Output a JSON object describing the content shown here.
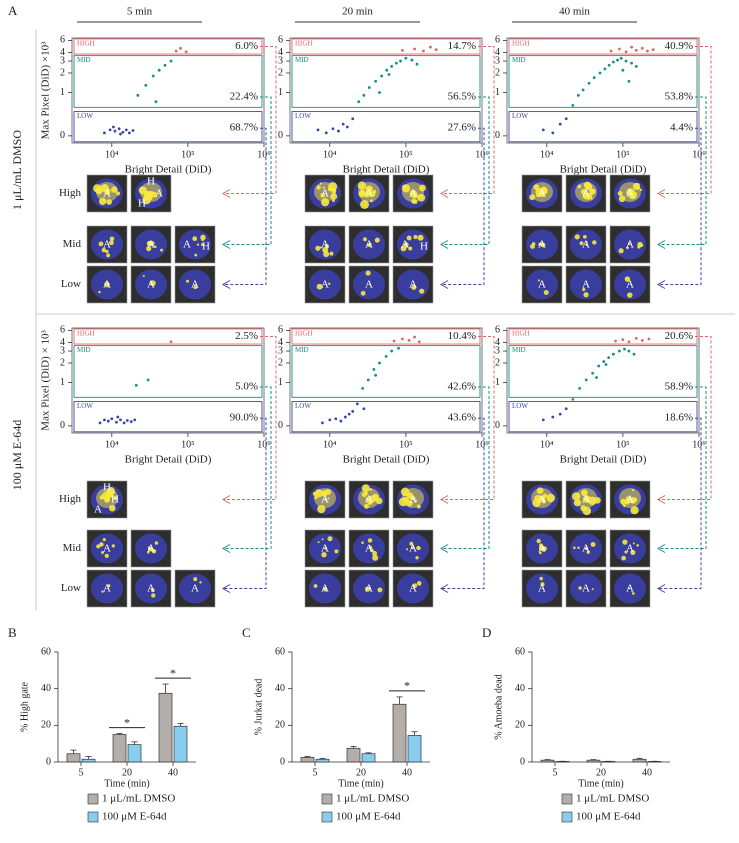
{
  "figure_label": "A",
  "time_headers": [
    "5 min",
    "20 min",
    "40 min"
  ],
  "conditions": [
    "1 μL/mL DMSO",
    "100 μM E-64d"
  ],
  "row_labels": [
    "High",
    "Mid",
    "Low"
  ],
  "chart_data": [
    {
      "type": "scatter",
      "xscale": "log",
      "yscale": "asinh",
      "xlim": [
        3000,
        1000000
      ],
      "ylim": [
        -0.12,
        6.5
      ],
      "xticks": [
        {
          "value": 10000,
          "label": "10⁴"
        },
        {
          "value": 100000,
          "label": "10⁵"
        },
        {
          "value": 1000000,
          "label": "10⁶"
        }
      ],
      "yticks": [
        0,
        1,
        2,
        3,
        4,
        6
      ],
      "xlabel": "Bright Detail (DiD)",
      "ylabel": "Max Pixel (DiD) ×10³",
      "x": [
        8000,
        9500,
        11000,
        12500,
        14000,
        15500,
        17000,
        19000,
        10500,
        13000,
        22000,
        28000,
        35000,
        42000,
        50000,
        38000,
        60000,
        70000,
        80000,
        95000
      ],
      "values": [
        0.05,
        0.1,
        0.08,
        0.12,
        0.06,
        0.1,
        0.05,
        0.09,
        0.15,
        0.03,
        0.9,
        1.3,
        1.8,
        2.2,
        2.6,
        0.7,
        3.0,
        4.2,
        4.6,
        4.1
      ],
      "gates": [
        {
          "name": "HIGH",
          "range": [
            3.8,
            6.3
          ],
          "color": "#e06464",
          "percent": "6.0%"
        },
        {
          "name": "MID",
          "range": [
            0.55,
            3.6
          ],
          "color": "#138f8b",
          "percent": "22.4%"
        },
        {
          "name": "LOW",
          "range": [
            -0.1,
            0.45
          ],
          "color": "#3a45a8",
          "percent": "68.7%"
        }
      ]
    },
    {
      "type": "scatter",
      "xscale": "log",
      "yscale": "asinh",
      "xlim": [
        3000,
        1000000
      ],
      "ylim": [
        -0.12,
        6.5
      ],
      "xticks": [
        {
          "value": 10000,
          "label": "10⁴"
        },
        {
          "value": 100000,
          "label": "10⁵"
        },
        {
          "value": 1000000,
          "label": "10⁶"
        }
      ],
      "yticks": [
        0,
        1,
        2,
        3,
        4,
        6
      ],
      "xlabel": "Bright Detail (DiD)",
      "x": [
        7000,
        9000,
        11000,
        13000,
        15000,
        17000,
        20000,
        24000,
        28000,
        33000,
        40000,
        48000,
        56000,
        65000,
        75000,
        85000,
        100000,
        120000,
        140000,
        90000,
        130000,
        170000,
        210000,
        250000,
        60000,
        45000
      ],
      "values": [
        0.1,
        0.05,
        0.12,
        0.08,
        0.2,
        0.15,
        0.3,
        0.7,
        0.9,
        1.2,
        1.5,
        1.8,
        2.2,
        2.5,
        2.8,
        3.0,
        3.3,
        3.1,
        2.7,
        4.3,
        4.5,
        4.2,
        4.8,
        4.4,
        1.9,
        1.0
      ],
      "gates": [
        {
          "name": "HIGH",
          "range": [
            3.8,
            6.3
          ],
          "color": "#e06464",
          "percent": "14.7%"
        },
        {
          "name": "MID",
          "range": [
            0.55,
            3.6
          ],
          "color": "#138f8b",
          "percent": "56.5%"
        },
        {
          "name": "LOW",
          "range": [
            -0.1,
            0.45
          ],
          "color": "#3a45a8",
          "percent": "27.6%"
        }
      ]
    },
    {
      "type": "scatter",
      "xscale": "log",
      "yscale": "asinh",
      "xlim": [
        3000,
        1000000
      ],
      "ylim": [
        -0.12,
        6.5
      ],
      "xticks": [
        {
          "value": 10000,
          "label": "10⁴"
        },
        {
          "value": 100000,
          "label": "10⁵"
        },
        {
          "value": 1000000,
          "label": "10⁶"
        }
      ],
      "yticks": [
        0,
        1,
        2,
        3,
        4,
        6
      ],
      "xlabel": "Bright Detail (DiD)",
      "x": [
        9000,
        12000,
        15000,
        18000,
        22000,
        26000,
        30000,
        36000,
        42000,
        50000,
        58000,
        66000,
        75000,
        85000,
        95000,
        110000,
        130000,
        150000,
        70000,
        90000,
        110000,
        130000,
        150000,
        180000,
        210000,
        250000,
        100000,
        120000
      ],
      "values": [
        0.1,
        0.05,
        0.2,
        0.3,
        0.6,
        0.9,
        1.1,
        1.4,
        1.7,
        2.0,
        2.3,
        2.6,
        2.9,
        3.1,
        3.3,
        3.0,
        2.8,
        2.5,
        4.2,
        4.5,
        4.1,
        4.8,
        4.3,
        4.6,
        4.2,
        4.4,
        2.2,
        1.5
      ],
      "gates": [
        {
          "name": "HIGH",
          "range": [
            3.8,
            6.3
          ],
          "color": "#e06464",
          "percent": "40.9%"
        },
        {
          "name": "MID",
          "range": [
            0.55,
            3.6
          ],
          "color": "#138f8b",
          "percent": "53.8%"
        },
        {
          "name": "LOW",
          "range": [
            -0.1,
            0.45
          ],
          "color": "#3a45a8",
          "percent": "4.4%"
        }
      ]
    },
    {
      "type": "scatter",
      "xscale": "log",
      "yscale": "asinh",
      "xlim": [
        3000,
        1000000
      ],
      "ylim": [
        -0.12,
        6.5
      ],
      "xticks": [
        {
          "value": 10000,
          "label": "10⁴"
        },
        {
          "value": 100000,
          "label": "10⁵"
        },
        {
          "value": 1000000,
          "label": "10⁶"
        }
      ],
      "yticks": [
        0,
        1,
        2,
        3,
        4,
        6
      ],
      "xlabel": "Bright Detail (DiD)",
      "ylabel": "Max Pixel (DiD) × 10³",
      "x": [
        7000,
        8000,
        9000,
        10000,
        11500,
        13000,
        14500,
        16000,
        18000,
        20000,
        12000,
        21000,
        30000,
        60000
      ],
      "values": [
        0.05,
        0.1,
        0.08,
        0.12,
        0.06,
        0.1,
        0.05,
        0.09,
        0.07,
        0.1,
        0.15,
        0.9,
        1.1,
        4.1
      ],
      "gates": [
        {
          "name": "HIGH",
          "range": [
            3.8,
            6.3
          ],
          "color": "#e06464",
          "percent": "2.5%"
        },
        {
          "name": "MID",
          "range": [
            0.55,
            3.6
          ],
          "color": "#138f8b",
          "percent": "5.0%"
        },
        {
          "name": "LOW",
          "range": [
            -0.1,
            0.45
          ],
          "color": "#3a45a8",
          "percent": "90.0%"
        }
      ]
    },
    {
      "type": "scatter",
      "xscale": "log",
      "yscale": "asinh",
      "xlim": [
        3000,
        1000000
      ],
      "ylim": [
        -0.12,
        6.5
      ],
      "xticks": [
        {
          "value": 10000,
          "label": "10⁴"
        },
        {
          "value": 100000,
          "label": "10⁵"
        },
        {
          "value": 1000000,
          "label": "10⁶"
        }
      ],
      "yticks": [
        0,
        1,
        2,
        3,
        4,
        6
      ],
      "xlabel": "Bright Detail (DiD)",
      "x": [
        8000,
        10000,
        12000,
        14000,
        16000,
        18000,
        20000,
        23000,
        27000,
        32000,
        38000,
        45000,
        55000,
        65000,
        80000,
        70000,
        90000,
        110000,
        130000,
        150000,
        40000,
        28000
      ],
      "values": [
        0.05,
        0.1,
        0.12,
        0.08,
        0.15,
        0.2,
        0.25,
        0.4,
        0.8,
        1.1,
        1.6,
        2.0,
        2.5,
        3.0,
        3.3,
        4.2,
        4.5,
        4.3,
        4.8,
        4.1,
        1.3,
        0.3
      ],
      "gates": [
        {
          "name": "HIGH",
          "range": [
            3.8,
            6.3
          ],
          "color": "#e06464",
          "percent": "10.4%"
        },
        {
          "name": "MID",
          "range": [
            0.55,
            3.6
          ],
          "color": "#138f8b",
          "percent": "42.6%"
        },
        {
          "name": "LOW",
          "range": [
            -0.1,
            0.45
          ],
          "color": "#3a45a8",
          "percent": "43.6%"
        }
      ]
    },
    {
      "type": "scatter",
      "xscale": "log",
      "yscale": "asinh",
      "xlim": [
        3000,
        1000000
      ],
      "ylim": [
        -0.12,
        6.5
      ],
      "xticks": [
        {
          "value": 10000,
          "label": "10⁴"
        },
        {
          "value": 100000,
          "label": "10⁵"
        },
        {
          "value": 1000000,
          "label": "10⁶"
        }
      ],
      "yticks": [
        0,
        1,
        2,
        3,
        4,
        6
      ],
      "xlabel": "Bright Detail (DiD)",
      "x": [
        9000,
        12000,
        15000,
        18000,
        22000,
        27000,
        33000,
        40000,
        48000,
        56000,
        65000,
        75000,
        90000,
        105000,
        120000,
        140000,
        80000,
        100000,
        120000,
        150000,
        180000,
        220000,
        60000,
        45000
      ],
      "values": [
        0.1,
        0.15,
        0.2,
        0.3,
        0.5,
        0.8,
        1.1,
        1.4,
        1.8,
        2.1,
        2.4,
        2.7,
        3.0,
        3.2,
        3.0,
        2.7,
        4.2,
        4.4,
        4.1,
        4.6,
        4.3,
        4.5,
        1.9,
        1.2
      ],
      "gates": [
        {
          "name": "HIGH",
          "range": [
            3.8,
            6.3
          ],
          "color": "#e06464",
          "percent": "20.6%"
        },
        {
          "name": "MID",
          "range": [
            0.55,
            3.6
          ],
          "color": "#138f8b",
          "percent": "58.9%"
        },
        {
          "name": "LOW",
          "range": [
            -0.1,
            0.45
          ],
          "color": "#3a45a8",
          "percent": "18.6%"
        }
      ]
    },
    {
      "type": "bar",
      "panel": "B",
      "categories": [
        5,
        20,
        40
      ],
      "ylim": [
        0,
        60
      ],
      "yticks": [
        0,
        20,
        40,
        60
      ],
      "ylabel": "% High gate",
      "xlabel": "Time (min)",
      "series": [
        {
          "name": "1 μL/mL DMSO",
          "color": "#b3aea9",
          "values": [
            4.5,
            15,
            37.5
          ],
          "errors": [
            2,
            0.5,
            5
          ]
        },
        {
          "name": "100 μM E-64d",
          "color": "#86cdee",
          "values": [
            1.5,
            9.5,
            19.5
          ],
          "errors": [
            1.5,
            1.5,
            1.5
          ]
        }
      ],
      "significance": [
        {
          "category": 20,
          "label": "*"
        },
        {
          "category": 40,
          "label": "*"
        }
      ]
    },
    {
      "type": "bar",
      "panel": "C",
      "categories": [
        5,
        20,
        40
      ],
      "ylim": [
        0,
        60
      ],
      "yticks": [
        0,
        20,
        40,
        60
      ],
      "ylabel": "% Jurkat dead",
      "xlabel": "Time (min)",
      "series": [
        {
          "name": "1 μL/mL DMSO",
          "color": "#b3aea9",
          "values": [
            2.5,
            7.5,
            31.5
          ],
          "errors": [
            0.5,
            1,
            4
          ]
        },
        {
          "name": "100 μM E-64d",
          "color": "#86cdee",
          "values": [
            1.5,
            4.5,
            14.5
          ],
          "errors": [
            0.5,
            0.5,
            2
          ]
        }
      ],
      "significance": [
        {
          "category": 40,
          "label": "*"
        }
      ]
    },
    {
      "type": "bar",
      "panel": "D",
      "categories": [
        5,
        20,
        40
      ],
      "ylim": [
        0,
        60
      ],
      "yticks": [
        0,
        20,
        40,
        60
      ],
      "ylabel": "% Amoeba dead",
      "xlabel": "Time (min)",
      "series": [
        {
          "name": "1 μL/mL DMSO",
          "color": "#b3aea9",
          "values": [
            1,
            1,
            1.5
          ],
          "errors": [
            0.3,
            0.3,
            0.5
          ]
        },
        {
          "name": "100 μM E-64d",
          "color": "#86cdee",
          "values": [
            0.3,
            0.3,
            0.3
          ],
          "errors": [
            0.1,
            0.1,
            0.1
          ]
        }
      ],
      "significance": []
    }
  ],
  "cell_images": [
    [
      [
        [
          [
            "A"
          ],
          [
            "H",
            "A",
            "H"
          ]
        ],
        [
          [
            "A"
          ],
          [
            "A"
          ],
          [
            "A",
            "H"
          ]
        ],
        [
          [
            "A"
          ],
          [
            "A"
          ],
          [
            "A"
          ]
        ]
      ],
      [
        [
          [
            "A"
          ],
          [
            "A"
          ],
          [
            "A"
          ]
        ],
        [
          [
            "A"
          ],
          [
            "A"
          ],
          [
            "A",
            "H"
          ]
        ],
        [
          [
            "A"
          ],
          [
            "A"
          ],
          [
            "A"
          ]
        ]
      ],
      [
        [
          [
            "A"
          ],
          [
            "A"
          ],
          [
            "A"
          ]
        ],
        [
          [
            "A"
          ],
          [
            "A"
          ],
          [
            "A"
          ]
        ],
        [
          [
            "A"
          ],
          [
            "A"
          ],
          [
            "A"
          ]
        ]
      ]
    ],
    [
      [
        [
          [
            "H",
            "H",
            "A"
          ]
        ],
        [
          [
            "A"
          ],
          [
            "A"
          ]
        ],
        [
          [
            "A"
          ],
          [
            "A"
          ],
          [
            "A"
          ]
        ]
      ],
      [
        [
          [
            "A"
          ],
          [
            "A"
          ],
          [
            "A"
          ]
        ],
        [
          [
            "A"
          ],
          [
            "A"
          ],
          [
            "A"
          ]
        ],
        [
          [
            "A"
          ],
          [
            "A"
          ],
          [
            "A"
          ]
        ]
      ],
      [
        [
          [
            "A"
          ],
          [
            "A"
          ],
          [
            "A"
          ]
        ],
        [
          [
            "A"
          ],
          [
            "A"
          ],
          [
            "A"
          ]
        ],
        [
          [
            "A"
          ],
          [
            "A"
          ],
          [
            "A"
          ]
        ]
      ]
    ]
  ]
}
